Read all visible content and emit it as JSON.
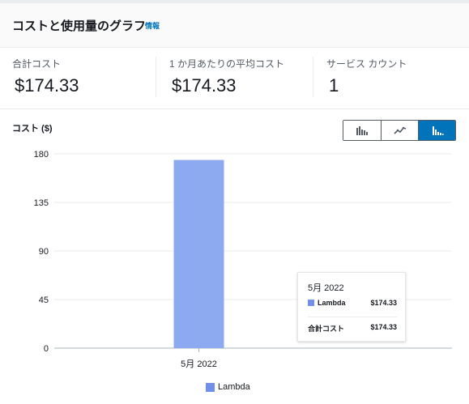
{
  "header": {
    "title": "コストと使用量のグラフ",
    "info_link": "情報"
  },
  "stats": [
    {
      "label": "合計コスト",
      "value": "$174.33"
    },
    {
      "label": "1 か月あたりの平均コスト",
      "value": "$174.33"
    },
    {
      "label": "サービス カウント",
      "value": "1"
    }
  ],
  "chart_controls": {
    "options": [
      "bar-chart-icon",
      "line-chart-icon",
      "stacked-bar-chart-icon"
    ],
    "active_index": 2
  },
  "colors": {
    "series": "#8da9f0",
    "accent": "#0073bb",
    "legend_swatch": "#6f8fe8"
  },
  "chart_data": {
    "type": "bar",
    "ylabel": "コスト ($)",
    "categories": [
      "5月 2022"
    ],
    "series": [
      {
        "name": "Lambda",
        "values": [
          174.33
        ]
      }
    ],
    "ylim": [
      0,
      180
    ],
    "yticks": [
      0,
      45,
      90,
      135,
      180
    ],
    "grid": true,
    "legend": "bottom"
  },
  "tooltip": {
    "title": "5月 2022",
    "series_label": "Lambda",
    "series_value": "$174.33",
    "total_label": "合計コスト",
    "total_value": "$174.33"
  }
}
